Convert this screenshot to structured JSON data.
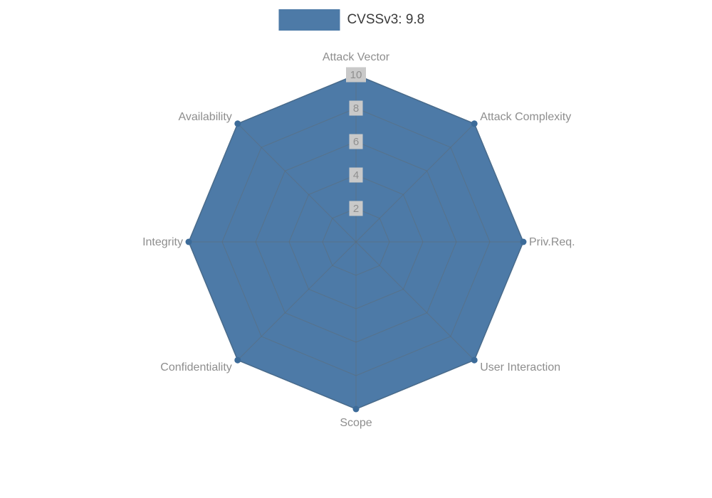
{
  "legend": {
    "label": "CVSSv3: 9.8",
    "swatch_color": "#4d7aa7"
  },
  "chart_data": {
    "type": "radar",
    "title": "CVSSv3: 9.8",
    "categories": [
      "Attack Vector",
      "Attack Complexity",
      "Priv.Req.",
      "User Interaction",
      "Scope",
      "Confidentiality",
      "Integrity",
      "Availability"
    ],
    "series": [
      {
        "name": "CVSSv3: 9.8",
        "values": [
          10,
          10,
          10,
          10,
          10,
          10,
          10,
          10
        ]
      }
    ],
    "ticks": [
      2,
      4,
      6,
      8,
      10
    ],
    "rmax": 10,
    "rlim": [
      0,
      10
    ],
    "grid": true,
    "legend_position": "top",
    "colors": {
      "fill": "#4d7aa7",
      "stroke": "#3c6b99",
      "grid": "#5f6b75",
      "label": "#8e8e8e",
      "tick_bg": "#c9c9c9",
      "tick_text": "#8f8f8f"
    }
  }
}
